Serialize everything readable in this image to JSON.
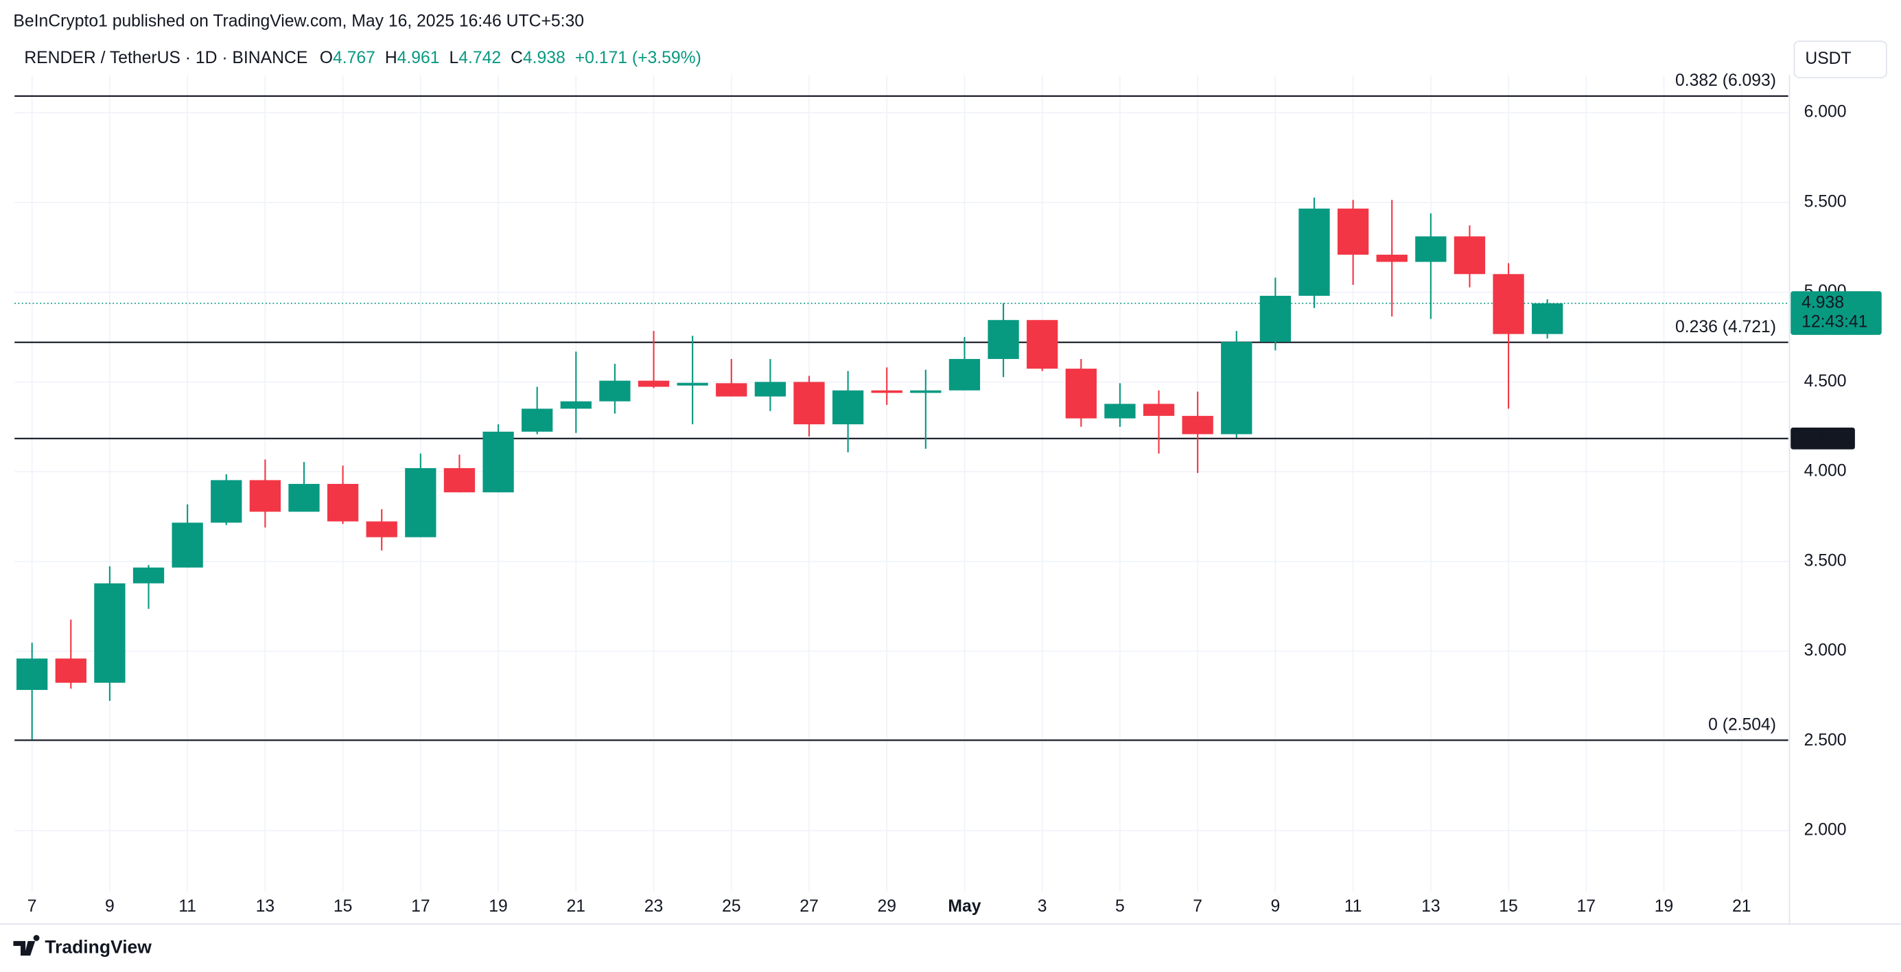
{
  "publisher": "BeInCrypto1 published on TradingView.com, May 16, 2025 16:46 UTC+5:30",
  "currency": "USDT",
  "brand": "TradingView",
  "chart_data": {
    "type": "candlestick",
    "title": "RENDER / TetherUS · 1D · BINANCE",
    "ohlc_labels": [
      "O",
      "H",
      "L",
      "C"
    ],
    "change": "+0.171 (+3.59%)",
    "up_color": "#089981",
    "down_color": "#f23645",
    "open": [
      2.784,
      2.959,
      2.824,
      3.378,
      3.466,
      3.716,
      3.953,
      3.777,
      3.932,
      3.723,
      3.635,
      4.02,
      3.885,
      4.223,
      4.351,
      4.392,
      4.507,
      4.48,
      4.493,
      4.419,
      4.5,
      4.264,
      4.453,
      4.439,
      4.453,
      4.628,
      4.845,
      4.574,
      4.297,
      4.378,
      4.311,
      4.209,
      4.723,
      4.98,
      5.466,
      5.209,
      5.169,
      5.311,
      5.101,
      4.767
    ],
    "high": [
      3.047,
      3.176,
      3.473,
      3.48,
      3.818,
      3.986,
      4.068,
      4.054,
      4.034,
      3.791,
      4.101,
      4.095,
      4.264,
      4.473,
      4.669,
      4.601,
      4.784,
      4.757,
      4.628,
      4.628,
      4.534,
      4.561,
      4.581,
      4.568,
      4.75,
      4.939,
      4.845,
      4.628,
      4.493,
      4.453,
      4.446,
      4.784,
      5.081,
      5.527,
      5.514,
      5.514,
      5.439,
      5.372,
      5.162,
      4.961
    ],
    "low": [
      2.507,
      2.791,
      2.723,
      3.236,
      3.466,
      3.703,
      3.689,
      3.777,
      3.709,
      3.561,
      3.635,
      3.885,
      3.885,
      4.209,
      4.216,
      4.324,
      4.466,
      4.264,
      4.419,
      4.338,
      4.196,
      4.108,
      4.372,
      4.128,
      4.453,
      4.527,
      4.561,
      4.25,
      4.25,
      4.101,
      3.993,
      4.189,
      4.676,
      4.912,
      5.041,
      4.865,
      4.851,
      5.027,
      4.351,
      4.742
    ],
    "close": [
      2.959,
      2.824,
      3.378,
      3.466,
      3.716,
      3.953,
      3.777,
      3.932,
      3.723,
      3.635,
      4.02,
      3.885,
      4.223,
      4.351,
      4.392,
      4.507,
      4.473,
      4.495,
      4.419,
      4.5,
      4.264,
      4.453,
      4.439,
      4.453,
      4.628,
      4.845,
      4.574,
      4.297,
      4.378,
      4.311,
      4.209,
      4.723,
      4.98,
      5.466,
      5.209,
      5.169,
      5.311,
      5.101,
      4.767,
      4.938
    ],
    "xlim": [
      -0.45,
      45.2
    ],
    "xticks": [
      {
        "value": 0,
        "label": "7"
      },
      {
        "value": 2,
        "label": "9"
      },
      {
        "value": 4,
        "label": "11"
      },
      {
        "value": 6,
        "label": "13"
      },
      {
        "value": 8,
        "label": "15"
      },
      {
        "value": 10,
        "label": "17"
      },
      {
        "value": 12,
        "label": "19"
      },
      {
        "value": 14,
        "label": "21"
      },
      {
        "value": 16,
        "label": "23"
      },
      {
        "value": 18,
        "label": "25"
      },
      {
        "value": 20,
        "label": "27"
      },
      {
        "value": 22,
        "label": "29"
      },
      {
        "value": 24,
        "label": "May"
      },
      {
        "value": 26,
        "label": "3"
      },
      {
        "value": 28,
        "label": "5"
      },
      {
        "value": 30,
        "label": "7"
      },
      {
        "value": 32,
        "label": "9"
      },
      {
        "value": 34,
        "label": "11"
      },
      {
        "value": 36,
        "label": "13"
      },
      {
        "value": 38,
        "label": "15"
      },
      {
        "value": 40,
        "label": "17"
      },
      {
        "value": 42,
        "label": "19"
      },
      {
        "value": 44,
        "label": "21"
      }
    ],
    "ylim": [
      1.662,
      6.209
    ],
    "yticks": [
      {
        "value": 2,
        "label": "2.000"
      },
      {
        "value": 2.5,
        "label": "2.500"
      },
      {
        "value": 3,
        "label": "3.000"
      },
      {
        "value": 3.5,
        "label": "3.500"
      },
      {
        "value": 4,
        "label": "4.000"
      },
      {
        "value": 4.5,
        "label": "4.500"
      },
      {
        "value": 5,
        "label": "5.000"
      },
      {
        "value": 5.5,
        "label": "5.500"
      },
      {
        "value": 6,
        "label": "6.000"
      }
    ],
    "grid": true,
    "levels": [
      {
        "value": 6.093,
        "label": "0.382 (6.093)"
      },
      {
        "value": 4.721,
        "label": "0.236 (4.721)"
      },
      {
        "value": 2.504,
        "label": "0 (2.504)"
      }
    ],
    "support": 4.185,
    "countdown": "12:43:41"
  }
}
